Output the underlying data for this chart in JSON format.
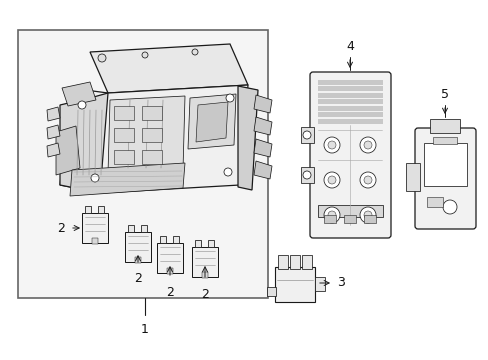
{
  "background_color": "#ffffff",
  "fig_width": 4.89,
  "fig_height": 3.6,
  "dpi": 100,
  "line_color": "#1a1a1a",
  "gray_fill": "#e8e8e8",
  "gray_mid": "#cccccc",
  "gray_dark": "#aaaaaa",
  "gray_light": "#f0f0f0",
  "box_outline": "#555555",
  "label_fontsize": 8.5,
  "lw_main": 0.9,
  "lw_thin": 0.55
}
